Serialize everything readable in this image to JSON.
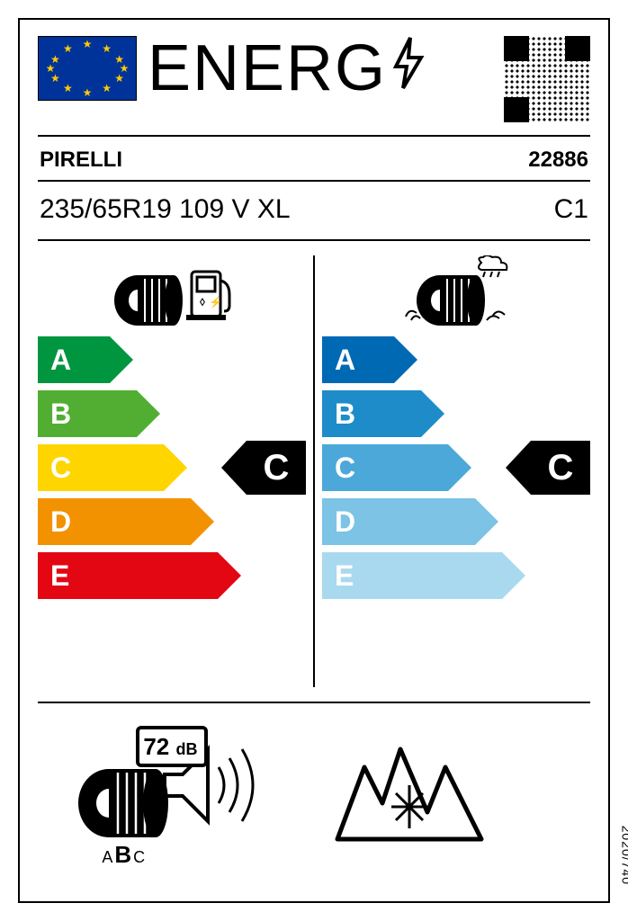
{
  "header": {
    "logo_text": "ENERG"
  },
  "brand_row": {
    "brand": "PIRELLI",
    "article": "22886"
  },
  "size_row": {
    "size": "235/65R19 109 V XL",
    "class": "C1"
  },
  "fuel": {
    "letters": [
      "A",
      "B",
      "C",
      "D",
      "E"
    ],
    "colors": [
      "#009640",
      "#52ae32",
      "#ffd500",
      "#f39200",
      "#e30613"
    ],
    "widths": [
      80,
      110,
      140,
      170,
      200
    ],
    "rating": "C",
    "rating_index": 2
  },
  "wet": {
    "letters": [
      "A",
      "B",
      "C",
      "D",
      "E"
    ],
    "colors": [
      "#0069b4",
      "#1e8cc9",
      "#4ba8d8",
      "#7cc3e5",
      "#a9d9ef"
    ],
    "widths": [
      80,
      110,
      140,
      170,
      200
    ],
    "rating": "C",
    "rating_index": 2
  },
  "noise": {
    "value": "72",
    "unit": "dB",
    "scale_letters": [
      "A",
      "B",
      "C"
    ],
    "active_letter": "B"
  },
  "regulation": "2020/740"
}
